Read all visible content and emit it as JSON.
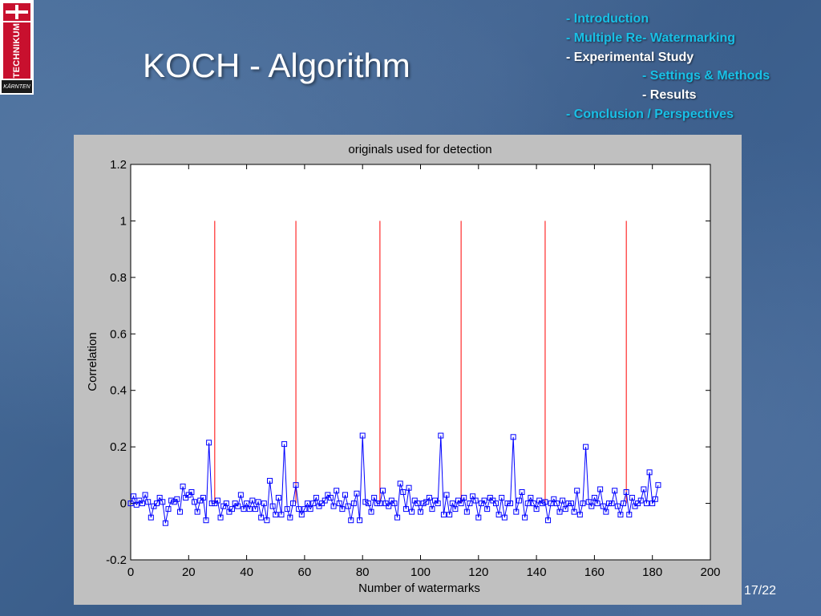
{
  "slide": {
    "title": "KOCH - Algorithm",
    "page_number": "17/22"
  },
  "logo": {
    "vertical_text": "TECHNIKUM",
    "small_text": "KÄRNTEN",
    "brand_color": "#c8102e"
  },
  "agenda": {
    "items": [
      {
        "prefix": "- ",
        "label": "Introduction",
        "state": "inactive"
      },
      {
        "prefix": "- ",
        "label": "Multiple Re- Watermarking",
        "state": "inactive"
      },
      {
        "prefix": "- ",
        "label": "Experimental Study",
        "state": "active"
      },
      {
        "prefix": "- ",
        "label": "Settings & Methods",
        "state": "inactive",
        "indent": true
      },
      {
        "prefix": "- ",
        "label": "Results",
        "state": "active",
        "indent": true
      },
      {
        "prefix": "- ",
        "label": "Conclusion / Perspectives",
        "state": "inactive"
      }
    ],
    "colors": {
      "active": "#ffffff",
      "inactive": "#19c0e6"
    }
  },
  "chart_data": {
    "type": "line",
    "title": "originals used for detection",
    "xlabel": "Number of watermarks",
    "ylabel": "Correlation",
    "xlim": [
      0,
      200
    ],
    "ylim": [
      -0.2,
      1.2
    ],
    "xticks": [
      0,
      20,
      40,
      60,
      80,
      100,
      120,
      140,
      160,
      180,
      200
    ],
    "yticks": [
      -0.2,
      0,
      0.2,
      0.4,
      0.6,
      0.8,
      1,
      1.2
    ],
    "ytick_labels": [
      "-0.2",
      "0",
      "0.2",
      "0.4",
      "0.6",
      "0.8",
      "1",
      "1.2"
    ],
    "grid": false,
    "series": [
      {
        "style": "blue line with square markers",
        "color": "#0000ff",
        "x_start": 0,
        "x_step": 1,
        "values": [
          0.0,
          0.025,
          -0.005,
          0.01,
          0.0,
          0.03,
          0.005,
          -0.05,
          -0.01,
          0.0,
          0.02,
          0.005,
          -0.07,
          -0.02,
          0.01,
          0.005,
          0.015,
          -0.03,
          0.06,
          0.02,
          0.03,
          0.04,
          0.005,
          -0.03,
          0.01,
          0.02,
          -0.06,
          0.215,
          0.0,
          0.0,
          0.01,
          -0.05,
          -0.01,
          0.0,
          -0.03,
          -0.02,
          0.0,
          -0.01,
          0.03,
          -0.02,
          0.0,
          -0.02,
          0.01,
          -0.02,
          0.005,
          -0.05,
          0.0,
          -0.06,
          0.08,
          -0.01,
          -0.04,
          0.02,
          -0.04,
          0.21,
          -0.02,
          -0.05,
          0.0,
          0.065,
          -0.02,
          -0.04,
          -0.02,
          0.0,
          -0.02,
          0.0,
          0.02,
          -0.01,
          0.0,
          0.01,
          0.03,
          0.02,
          -0.01,
          0.045,
          0.0,
          -0.02,
          0.03,
          -0.01,
          -0.06,
          0.0,
          0.035,
          -0.06,
          0.24,
          0.005,
          0.0,
          -0.03,
          0.02,
          0.0,
          0.0,
          0.045,
          0.0,
          -0.01,
          0.01,
          0.0,
          -0.05,
          0.07,
          0.04,
          -0.02,
          0.055,
          -0.03,
          0.01,
          0.0,
          -0.03,
          0.0,
          0.005,
          0.02,
          -0.02,
          0.01,
          0.0,
          0.24,
          -0.04,
          0.03,
          -0.04,
          0.0,
          -0.02,
          0.01,
          0.0,
          0.02,
          -0.03,
          0.0,
          0.025,
          0.01,
          -0.05,
          0.0,
          0.01,
          -0.02,
          0.02,
          0.01,
          0.0,
          -0.04,
          0.02,
          -0.05,
          0.0,
          0.0,
          0.235,
          -0.03,
          0.01,
          0.04,
          -0.05,
          0.0,
          0.02,
          0.0,
          -0.02,
          0.01,
          0.0,
          0.005,
          -0.06,
          0.0,
          0.015,
          0.0,
          -0.03,
          0.01,
          -0.02,
          0.0,
          0.0,
          -0.03,
          0.045,
          -0.04,
          0.0,
          0.2,
          0.005,
          -0.01,
          0.02,
          0.0,
          0.05,
          -0.01,
          -0.03,
          0.0,
          0.0,
          0.045,
          -0.01,
          -0.04,
          0.0,
          0.04,
          -0.04,
          0.02,
          -0.01,
          0.0,
          0.01,
          0.05,
          0.0,
          0.11,
          0.0,
          0.015,
          0.065
        ]
      },
      {
        "style": "red vertical lines",
        "color": "#ff0000",
        "x": [
          29,
          57,
          86,
          114,
          143,
          171
        ],
        "y_from": 0,
        "y_to": 1
      }
    ]
  }
}
